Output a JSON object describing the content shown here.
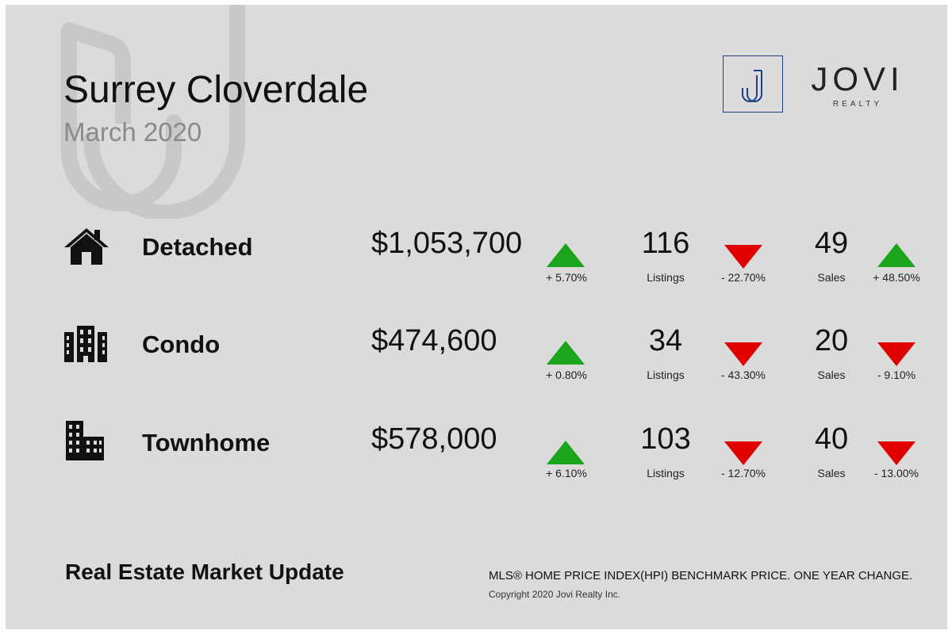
{
  "header": {
    "title": "Surrey Cloverdale",
    "subtitle": "March 2020",
    "watermark_icon": "jovi-j-watermark-icon"
  },
  "logo": {
    "icon": "jovi-j-logo-icon",
    "brand": "JOVI",
    "brand_sub": "REALTY",
    "accent": "#1f3e86"
  },
  "colors": {
    "up": "#1aa51a",
    "down": "#e00000",
    "background": "#dbdbdb"
  },
  "rows": [
    {
      "type": "Detached",
      "icon": "house-icon",
      "price": "$1,053,700",
      "price_change": "+ 5.70%",
      "price_trend": "up",
      "listings": "116",
      "listings_label": "Listings",
      "listings_change": "- 22.70%",
      "listings_trend": "down",
      "sales": "49",
      "sales_label": "Sales",
      "sales_change": "+ 48.50%",
      "sales_trend": "up"
    },
    {
      "type": "Condo",
      "icon": "condo-building-icon",
      "price": "$474,600",
      "price_change": "+ 0.80%",
      "price_trend": "up",
      "listings": "34",
      "listings_label": "Listings",
      "listings_change": "- 43.30%",
      "listings_trend": "down",
      "sales": "20",
      "sales_label": "Sales",
      "sales_change": "- 9.10%",
      "sales_trend": "down"
    },
    {
      "type": "Townhome",
      "icon": "townhome-buildings-icon",
      "price": "$578,000",
      "price_change": "+ 6.10%",
      "price_trend": "up",
      "listings": "103",
      "listings_label": "Listings",
      "listings_change": "- 12.70%",
      "listings_trend": "down",
      "sales": "40",
      "sales_label": "Sales",
      "sales_change": "- 13.00%",
      "sales_trend": "down"
    }
  ],
  "footer": {
    "left": "Real Estate Market Update",
    "right": "MLS® HOME PRICE INDEX(HPI) BENCHMARK PRICE. ONE YEAR CHANGE.",
    "copyright": "Copyright 2020 Jovi Realty Inc."
  }
}
